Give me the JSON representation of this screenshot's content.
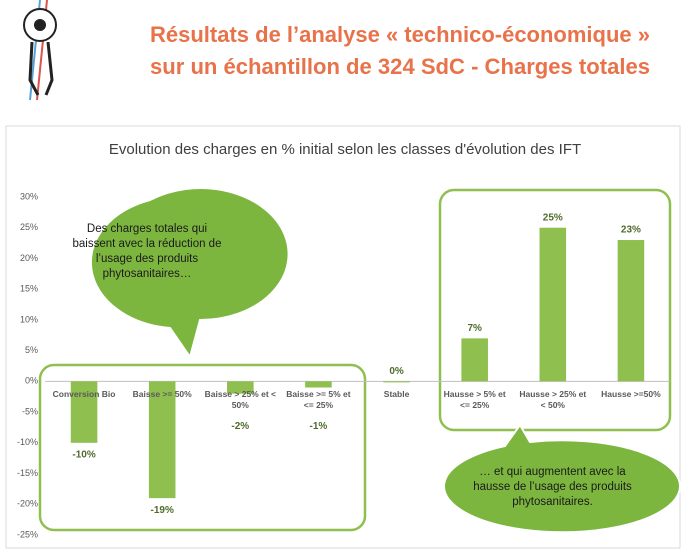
{
  "header": {
    "title_lines": [
      "Résultats de l’analyse « technico-économique »",
      "sur un échantillon de 324 SdC - Charges totales"
    ]
  },
  "callouts": [
    "Des charges totales qui baissent avec  la réduction de l’usage des produits phytosanitaires…",
    "… et qui augmentent avec la hausse de l’usage des produits phytosanitaires."
  ],
  "chart_data": {
    "type": "bar",
    "title": "Evolution des charges en % initial selon les classes d'évolution des IFT",
    "categories": [
      "Conversion Bio",
      "Baisse >= 50%",
      "Baisse > 25% et < 50%",
      "Baisse >= 5% et <= 25%",
      "Stable",
      "Hausse > 5% et <= 25%",
      "Hausse > 25% et < 50%",
      "Hausse >=50%"
    ],
    "values": [
      -10,
      -19,
      -2,
      -1,
      0,
      7,
      25,
      23
    ],
    "value_labels": [
      "-10%",
      "-19%",
      "-2%",
      "-1%",
      "0%",
      "7%",
      "25%",
      "23%"
    ],
    "color": "#8fc04f",
    "ylim": [
      -25,
      30
    ],
    "yticks": [
      {
        "value": -25,
        "label": "-25%"
      },
      {
        "value": -20,
        "label": "-20%"
      },
      {
        "value": -15,
        "label": "-15%"
      },
      {
        "value": -10,
        "label": "-10%"
      },
      {
        "value": -5,
        "label": "-5%"
      },
      {
        "value": 0,
        "label": "0%"
      },
      {
        "value": 5,
        "label": "5%"
      },
      {
        "value": 10,
        "label": "10%"
      },
      {
        "value": 15,
        "label": "15%"
      },
      {
        "value": 20,
        "label": "20%"
      },
      {
        "value": 25,
        "label": "25%"
      },
      {
        "value": 30,
        "label": "30%"
      }
    ],
    "grid": false
  }
}
